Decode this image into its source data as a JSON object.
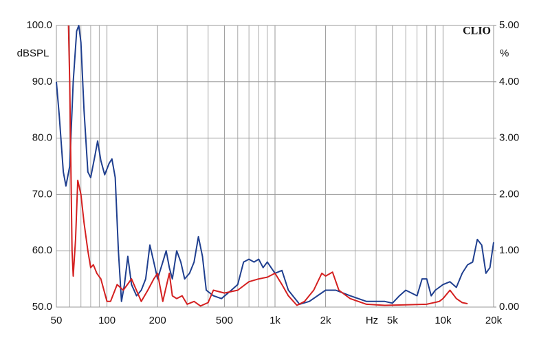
{
  "chart_data": {
    "type": "line",
    "brand": "CLIO",
    "y_label": "dBSPL",
    "y2_label": "%",
    "x_label": "Hz",
    "log_x": true,
    "grid": true,
    "xlim": [
      50,
      20000
    ],
    "xticks": [
      50,
      100,
      200,
      500,
      {
        "value": 1000,
        "label": "1k"
      },
      {
        "value": 2000,
        "label": "2k"
      },
      {
        "value": 5000,
        "label": "5k"
      },
      {
        "value": 10000,
        "label": "10k"
      },
      {
        "value": 20000,
        "label": "20k"
      }
    ],
    "x_minor_grid": [
      60,
      70,
      80,
      90,
      300,
      400,
      600,
      700,
      800,
      900,
      3000,
      4000,
      6000,
      7000,
      8000,
      9000
    ],
    "ylim": [
      50,
      100
    ],
    "yticks": [
      {
        "value": 50,
        "label": "50.0"
      },
      {
        "value": 60,
        "label": "60.0"
      },
      {
        "value": 70,
        "label": "70.0"
      },
      {
        "value": 80,
        "label": "80.0"
      },
      {
        "value": 90,
        "label": "90.0"
      },
      {
        "value": 100,
        "label": "100.0"
      }
    ],
    "y2lim": [
      0,
      5
    ],
    "y2ticks": [
      {
        "value": 0,
        "label": "0.00"
      },
      {
        "value": 1,
        "label": "1.00"
      },
      {
        "value": 2,
        "label": "2.00"
      },
      {
        "value": 3,
        "label": "3.00"
      },
      {
        "value": 4,
        "label": "4.00"
      },
      {
        "value": 5,
        "label": "5.00"
      }
    ],
    "series": [
      {
        "color": "#1f3f8f",
        "x": [
          50,
          52,
          55,
          57,
          60,
          63,
          66,
          68,
          70,
          73,
          77,
          80,
          85,
          88,
          92,
          97,
          103,
          107,
          112,
          117,
          122,
          127,
          133,
          140,
          150,
          160,
          170,
          180,
          190,
          200,
          215,
          225,
          235,
          245,
          260,
          275,
          290,
          310,
          330,
          350,
          370,
          390,
          430,
          480,
          550,
          600,
          650,
          700,
          750,
          800,
          850,
          900,
          1000,
          1100,
          1200,
          1400,
          1600,
          2000,
          2300,
          2800,
          3500,
          4500,
          5000,
          5500,
          6000,
          7000,
          7500,
          8000,
          8500,
          9000,
          10000,
          11000,
          12000,
          13000,
          14000,
          15000,
          16000,
          17000,
          18000,
          19000,
          20000
        ],
        "values": [
          90,
          84,
          74,
          71.5,
          75,
          90,
          99,
          100,
          97,
          85,
          74,
          73,
          77,
          79.5,
          76,
          73.5,
          75.5,
          76.3,
          73,
          60,
          51,
          54,
          59,
          54,
          52,
          53,
          55,
          61,
          58,
          55,
          58,
          60,
          57,
          55,
          60,
          58,
          55,
          56,
          58,
          62.5,
          59,
          53,
          52,
          51.5,
          53,
          54,
          58,
          58.5,
          58,
          58.5,
          57,
          58,
          56,
          56.5,
          53,
          50.5,
          51,
          53,
          53,
          52,
          51,
          51,
          50.7,
          52,
          53,
          52,
          55,
          55,
          52,
          53,
          54,
          54.5,
          53.5,
          56,
          57.5,
          58,
          62,
          61,
          56,
          57,
          61.5
        ]
      },
      {
        "color": "#d42020",
        "x": [
          59,
          60,
          62,
          63,
          65,
          67,
          70,
          73,
          77,
          80,
          83,
          87,
          92,
          100,
          105,
          115,
          125,
          140,
          160,
          175,
          190,
          200,
          215,
          235,
          245,
          260,
          280,
          300,
          330,
          360,
          400,
          430,
          500,
          600,
          700,
          800,
          900,
          1000,
          1100,
          1200,
          1350,
          1500,
          1700,
          1900,
          2000,
          2200,
          2400,
          2800,
          3500,
          4500,
          6000,
          8000,
          9500,
          10000,
          11000,
          12000,
          13000,
          14000
        ],
        "values": [
          100,
          90,
          60,
          55.5,
          62,
          72.5,
          70,
          65,
          60,
          57,
          57.5,
          56,
          55,
          51,
          51,
          54,
          53,
          55,
          51,
          53,
          55,
          56,
          51,
          56,
          52,
          51.5,
          52,
          50.5,
          51,
          50.2,
          50.8,
          53,
          52.5,
          53,
          54.5,
          55,
          55.3,
          56,
          54,
          52,
          50.3,
          51,
          53,
          56,
          55.5,
          56.2,
          53,
          51.5,
          50.5,
          50.3,
          50.4,
          50.5,
          51,
          51.5,
          53,
          51.5,
          50.8,
          50.6
        ]
      }
    ]
  }
}
